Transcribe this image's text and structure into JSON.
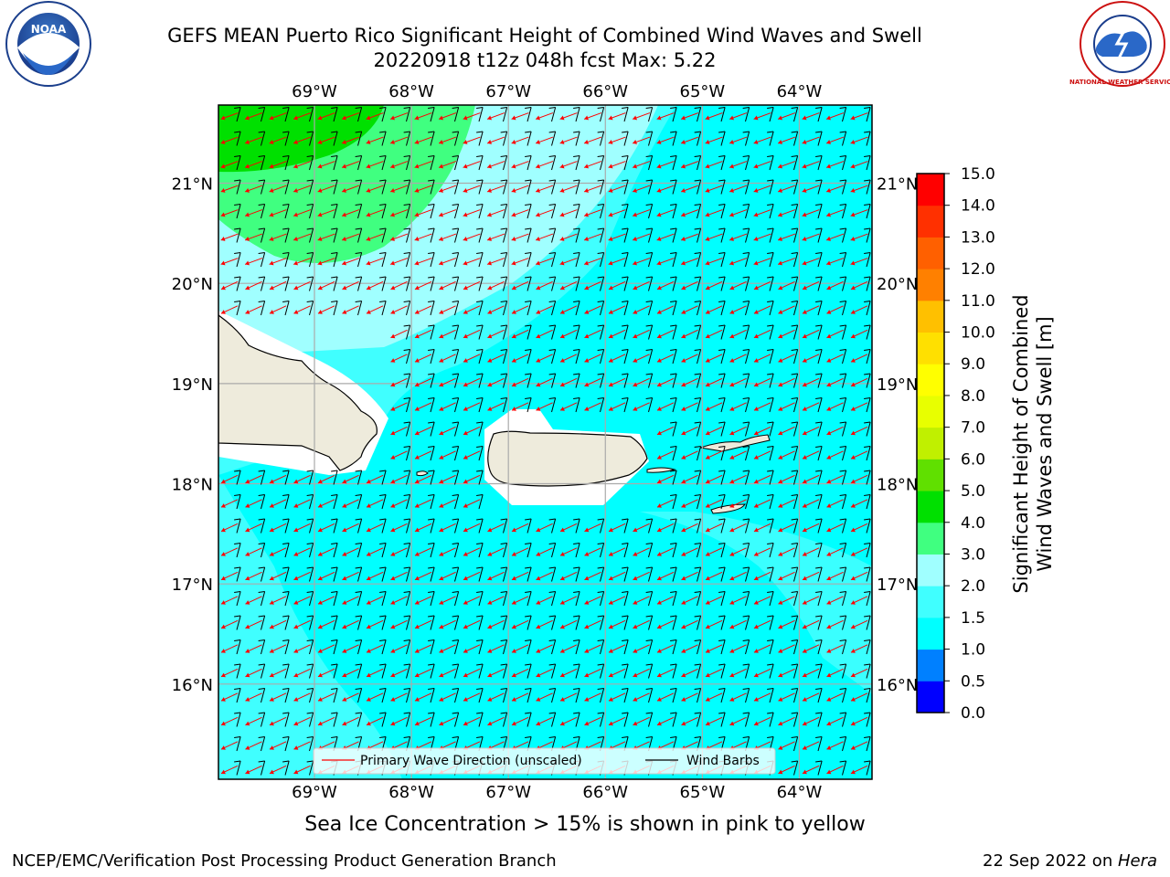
{
  "title_line1": "GEFS MEAN Puerto Rico Significant Height of Combined Wind Waves and Swell",
  "title_line2": "20220918 t12z 048h fcst   Max: 5.22",
  "logos": {
    "left": "NOAA",
    "right": "NATIONAL WEATHER SERVICE"
  },
  "map": {
    "lon_labels": [
      "69°W",
      "68°W",
      "67°W",
      "66°W",
      "65°W",
      "64°W"
    ],
    "lat_labels": [
      "21°N",
      "20°N",
      "19°N",
      "18°N",
      "17°N",
      "16°N"
    ],
    "lon_values": [
      -69,
      -68,
      -67,
      -66,
      -65,
      -64
    ],
    "lat_values": [
      21,
      20,
      19,
      18,
      17,
      16
    ],
    "extent": {
      "lon_min": -69.99,
      "lon_max": -63.25,
      "lat_min": 15.05,
      "lat_max": 21.78
    },
    "legend": {
      "wave_direction": "Primary Wave Direction (unscaled)",
      "wind_barbs": "Wind Barbs"
    }
  },
  "colorbar": {
    "label_line1": "Significant Height of Combined",
    "label_line2": "Wind Waves and Swell [m]",
    "tick_labels": [
      "15.0",
      "14.0",
      "13.0",
      "12.0",
      "11.0",
      "10.0",
      "9.0",
      "8.0",
      "7.0",
      "6.0",
      "5.0",
      "4.0",
      "3.0",
      "2.0",
      "1.5",
      "1.0",
      "0.5",
      "0.0"
    ],
    "levels": [
      0.0,
      0.5,
      1.0,
      1.5,
      2.0,
      3.0,
      4.0,
      5.0,
      6.0,
      7.0,
      8.0,
      9.0,
      10.0,
      11.0,
      12.0,
      13.0,
      14.0,
      15.0
    ],
    "colors": [
      "#0000ff",
      "#0080ff",
      "#00ffff",
      "#40ffff",
      "#a0ffff",
      "#40ff80",
      "#00e000",
      "#60e000",
      "#c0f000",
      "#e8ff00",
      "#ffff00",
      "#ffe000",
      "#ffc000",
      "#ff8000",
      "#ff6000",
      "#ff3000",
      "#ff0000"
    ]
  },
  "subtitle": "Sea Ice Concentration > 15% is shown in pink to yellow",
  "footer_left": "NCEP/EMC/Verification Post Processing Product Generation Branch",
  "footer_date": "22 Sep 2022 on ",
  "footer_host": "Hera",
  "colors": {
    "land": "#eeebdc",
    "barb": "#000000",
    "wave_arrow": "#ff0000",
    "grid": "#aaaaaa"
  }
}
